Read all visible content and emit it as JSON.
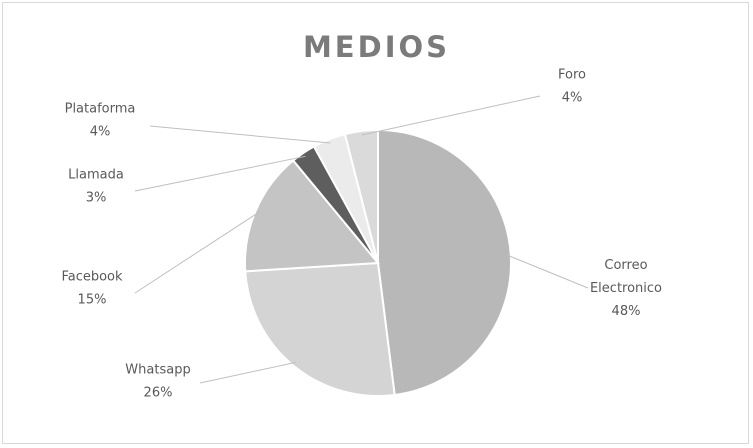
{
  "chart_data": {
    "type": "pie",
    "title": "MEDIOS",
    "slices": [
      {
        "name": "Correo Electronico",
        "label_lines": [
          "Correo",
          "Electronico"
        ],
        "value": 48,
        "value_label": "48%",
        "color": "#b8b8b8"
      },
      {
        "name": "Whatsapp",
        "label_lines": [
          "Whatsapp"
        ],
        "value": 26,
        "value_label": "26%",
        "color": "#d4d4d4"
      },
      {
        "name": "Facebook",
        "label_lines": [
          "Facebook"
        ],
        "value": 15,
        "value_label": "15%",
        "color": "#c4c4c4"
      },
      {
        "name": "Llamada",
        "label_lines": [
          "Llamada"
        ],
        "value": 3,
        "value_label": "3%",
        "color": "#5e5e5e"
      },
      {
        "name": "Plataforma",
        "label_lines": [
          "Plataforma"
        ],
        "value": 4,
        "value_label": "4%",
        "color": "#ebebeb"
      },
      {
        "name": "Foro",
        "label_lines": [
          "Foro"
        ],
        "value": 4,
        "value_label": "4%",
        "color": "#dadada"
      }
    ],
    "legend": "none",
    "colors": {
      "slice_border": "#ffffff",
      "leader_line": "#bfbfbf",
      "label_text": "#595959",
      "title_text": "#7b7b7b"
    }
  }
}
